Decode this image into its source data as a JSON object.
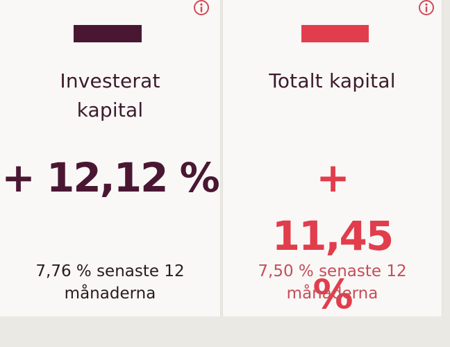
{
  "colors": {
    "invested": "#4a1733",
    "total": "#e23d4c",
    "total_note": "#c64d58"
  },
  "cards": [
    {
      "swatch_color": "#4a1733",
      "title": "Investerat kapital",
      "value": "+ 12,12 %",
      "note": "7,76 % senaste 12 månaderna"
    },
    {
      "swatch_color": "#e23d4c",
      "title": "Totalt kapital",
      "value": "+ 11,45 %",
      "note": "7,50 % senaste 12 månaderna"
    }
  ]
}
